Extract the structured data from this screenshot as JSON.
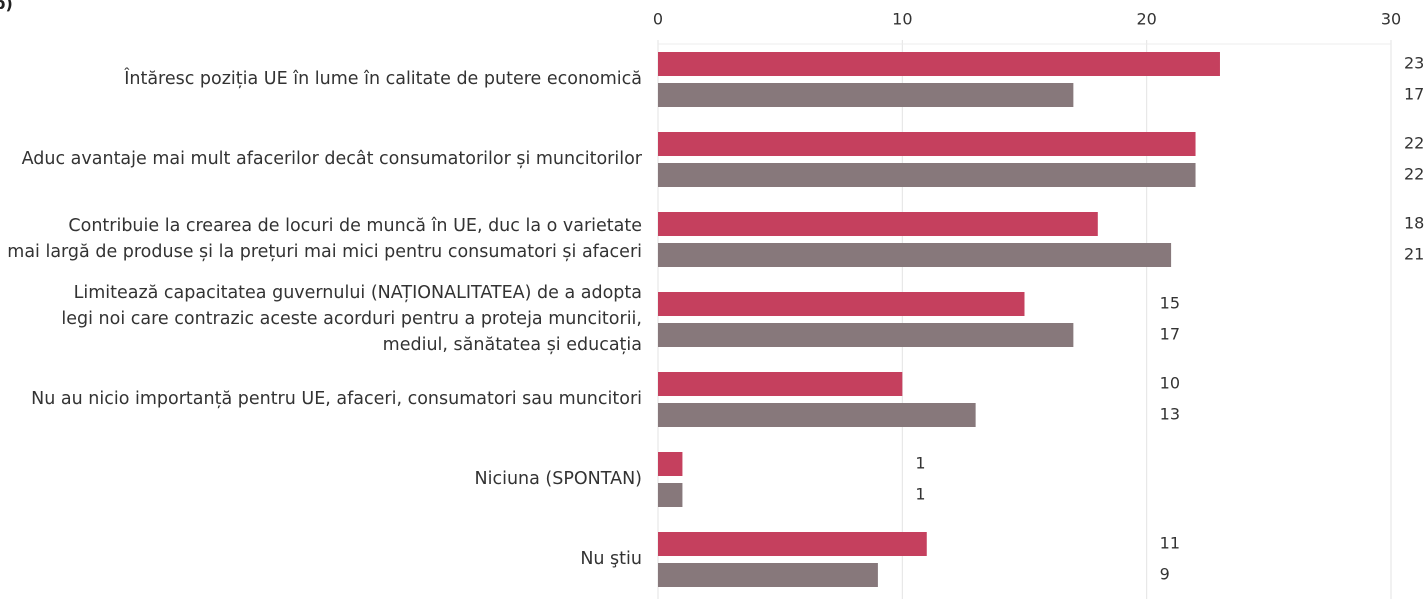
{
  "chart_data": {
    "type": "hbar",
    "panel_label": "b)",
    "categories": [
      "Întăresc poziția UE în lume în calitate de putere economică",
      "Aduc avantaje mai mult afacerilor decât consumatorilor și muncitorilor",
      "Contribuie la crearea de locuri de muncă în UE, duc la o varietate\nmai largă de produse și la prețuri mai mici pentru consumatori și afaceri",
      "Limitează capacitatea guvernului (NAȚIONALITATEA) de a adopta\nlegi noi care contrazic aceste acorduri pentru a proteja muncitorii,\nmediul, sănătatea și educația",
      "Nu au nicio importanță pentru UE, afaceri, consumatori sau muncitori",
      "Niciuna (SPONTAN)",
      "Nu ştiu"
    ],
    "series": [
      {
        "color": "#c5405e",
        "values": [
          23,
          22,
          18,
          15,
          10,
          1,
          11
        ]
      },
      {
        "color": "#87787b",
        "values": [
          17,
          22,
          21,
          17,
          13,
          1,
          9
        ]
      }
    ],
    "xlim": [
      0,
      30
    ],
    "xticks": [
      0,
      10,
      20,
      30
    ],
    "grid": true
  }
}
